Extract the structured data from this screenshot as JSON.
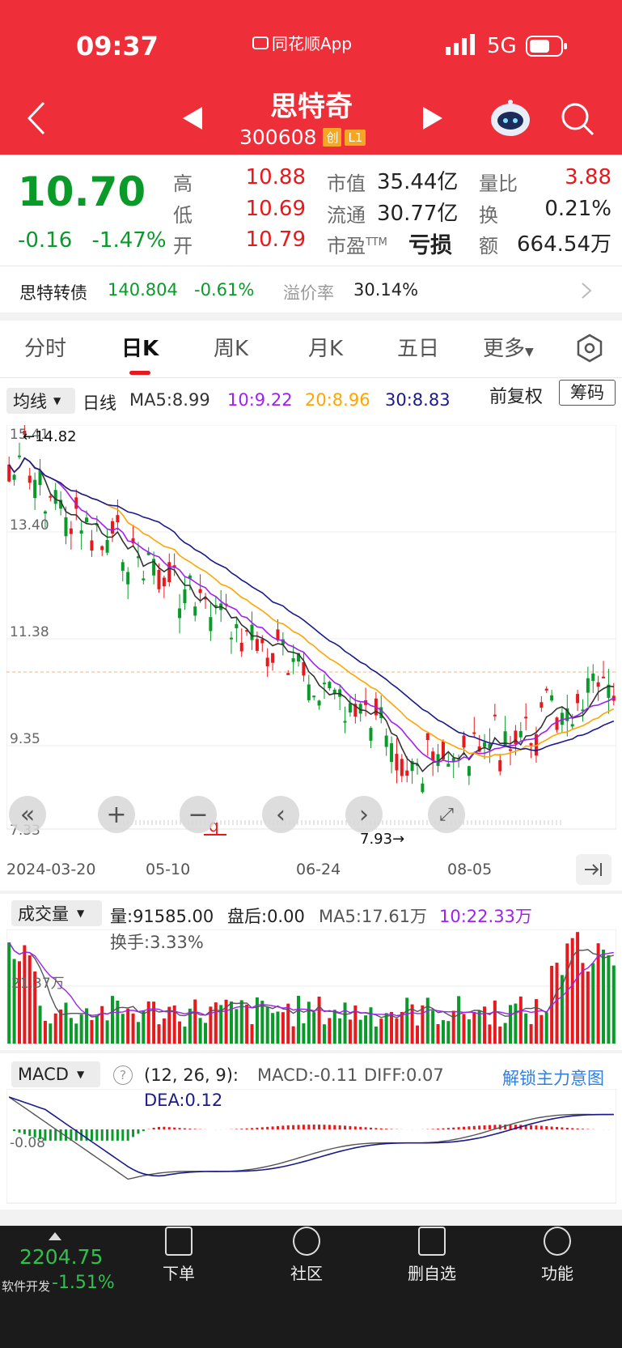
{
  "status_bar": {
    "time": "09:37",
    "app_name": "同花顺App",
    "network": "5G"
  },
  "header": {
    "title": "思特奇",
    "code": "300608",
    "badge_chuang": "创",
    "badge_l1": "L1"
  },
  "quote": {
    "price": "10.70",
    "change": "-0.16",
    "change_pct": "-1.47%",
    "high_label": "高",
    "high": "10.88",
    "low_label": "低",
    "low": "10.69",
    "open_label": "开",
    "open": "10.79",
    "mktcap_label": "市值",
    "mktcap": "35.44亿",
    "float_label": "流通",
    "float": "30.77亿",
    "pe_label": "市盈",
    "pe_sup": "TTM",
    "pe": "亏损",
    "vol_ratio_label": "量比",
    "vol_ratio": "3.88",
    "turnover_label": "换",
    "turnover": "0.21%",
    "amount_label": "额",
    "amount": "664.54万"
  },
  "bond": {
    "name": "思特转债",
    "price": "140.804",
    "change_pct": "-0.61%",
    "premium_label": "溢价率",
    "premium": "30.14%"
  },
  "tabs": [
    "分时",
    "日K",
    "周K",
    "月K",
    "五日",
    "更多"
  ],
  "active_tab": "日K",
  "ma_bar": {
    "selector": "均线",
    "period": "日线",
    "ma5": "MA5:8.99",
    "ma10": "10:9.22",
    "ma20": "20:8.96",
    "ma30": "30:8.83",
    "adjust": "前复权",
    "chips": "筹码"
  },
  "kline": {
    "y_ticks": [
      "15.41",
      "13.40",
      "11.38",
      "9.35",
      "7.33"
    ],
    "max_label": "←14.82",
    "min_label": "7.93→",
    "x_ticks": [
      "2024-03-20",
      "05-10",
      "06-24",
      "08-05"
    ],
    "marker": "q"
  },
  "volume": {
    "selector": "成交量",
    "vol": "量:91585.00",
    "after_hours": "盘后:0.00",
    "ma5": "MA5:17.61万",
    "ma10": "10:22.33万",
    "turnover": "换手:3.33%",
    "y_tick": "21.37万"
  },
  "macd": {
    "selector": "MACD",
    "params": "(12, 26, 9):",
    "macd": "MACD:-0.11",
    "diff": "DIFF:0.07",
    "dea": "DEA:0.12",
    "unlock": "解锁主力意图",
    "y_tick": "-0.08"
  },
  "bottom_bar": {
    "index_value": "2204.75",
    "index_name": "软件开发",
    "index_change": "-1.51%",
    "items": [
      "下单",
      "社区",
      "删自选",
      "功能"
    ]
  },
  "colors": {
    "header_red": "#ee2f3a",
    "up": "#e8191d",
    "down": "#0a9a2a",
    "ma5": "#333333",
    "ma10": "#a020f0",
    "ma20": "#ffa500",
    "ma30": "#1a1a8c"
  }
}
